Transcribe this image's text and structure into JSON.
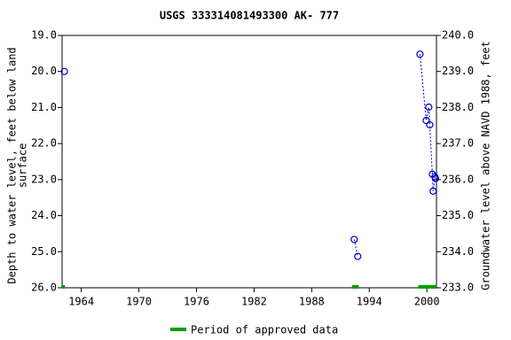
{
  "chart_data": {
    "type": "line",
    "title": "USGS 333314081493300 AK- 777",
    "y_label": [
      "Depth to water level, feet below land",
      "surface"
    ],
    "y2_label": "Groundwater level above NAVD 1988, feet",
    "xlim": [
      1962,
      2001
    ],
    "xticks": [
      1964,
      1970,
      1976,
      1982,
      1988,
      1994,
      2000
    ],
    "ylim": [
      19,
      26
    ],
    "y_inverted": true,
    "yticks": [
      {
        "value": 19,
        "label": "19.0"
      },
      {
        "value": 20,
        "label": "20.0"
      },
      {
        "value": 21,
        "label": "21.0"
      },
      {
        "value": 22,
        "label": "22.0"
      },
      {
        "value": 23,
        "label": "23.0"
      },
      {
        "value": 24,
        "label": "24.0"
      },
      {
        "value": 25,
        "label": "25.0"
      },
      {
        "value": 26,
        "label": "26.0"
      }
    ],
    "y2lim": [
      233,
      240
    ],
    "y2ticks": [
      {
        "value": 233,
        "label": "233.0"
      },
      {
        "value": 234,
        "label": "234.0"
      },
      {
        "value": 235,
        "label": "235.0"
      },
      {
        "value": 236,
        "label": "236.0"
      },
      {
        "value": 237,
        "label": "237.0"
      },
      {
        "value": 238,
        "label": "238.0"
      },
      {
        "value": 239,
        "label": "239.0"
      },
      {
        "value": 240,
        "label": "240.0"
      }
    ],
    "series": [
      {
        "color": "#0000cc",
        "x": [
          1962.24,
          null,
          1992.43,
          1992.8,
          null,
          1999.28,
          1999.93,
          2000.2,
          2000.3,
          2000.57,
          2000.65,
          2000.84,
          2000.9
        ],
        "values": [
          20.0,
          null,
          24.66,
          25.13,
          null,
          19.52,
          21.36,
          20.99,
          21.48,
          22.85,
          23.32,
          22.92,
          22.97
        ]
      }
    ],
    "approved_periods": {
      "name": "Period of approved data",
      "color": "#00a000",
      "ranges": [
        [
          1962,
          1962.3
        ],
        [
          1992.2,
          1992.9
        ],
        [
          1999.1,
          2001
        ]
      ]
    }
  }
}
